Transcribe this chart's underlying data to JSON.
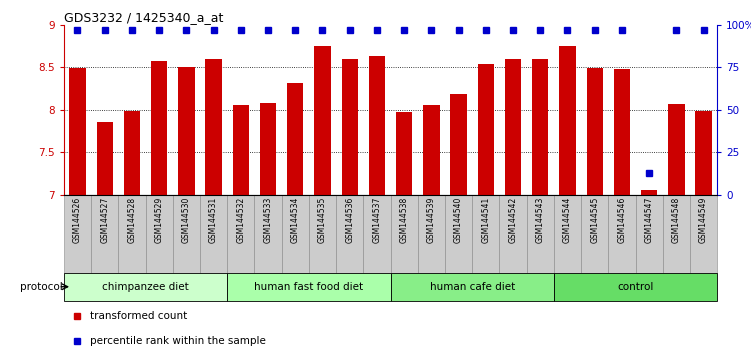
{
  "title": "GDS3232 / 1425340_a_at",
  "samples": [
    "GSM144526",
    "GSM144527",
    "GSM144528",
    "GSM144529",
    "GSM144530",
    "GSM144531",
    "GSM144532",
    "GSM144533",
    "GSM144534",
    "GSM144535",
    "GSM144536",
    "GSM144537",
    "GSM144538",
    "GSM144539",
    "GSM144540",
    "GSM144541",
    "GSM144542",
    "GSM144543",
    "GSM144544",
    "GSM144545",
    "GSM144546",
    "GSM144547",
    "GSM144548",
    "GSM144549"
  ],
  "bar_values": [
    8.49,
    7.85,
    7.98,
    8.57,
    8.5,
    8.6,
    8.05,
    8.08,
    8.32,
    8.75,
    8.6,
    8.63,
    7.97,
    8.06,
    8.19,
    8.54,
    8.6,
    8.6,
    8.75,
    8.49,
    8.48,
    7.05,
    8.07,
    7.98
  ],
  "percentile_ranks": [
    97,
    97,
    97,
    97,
    97,
    97,
    97,
    97,
    97,
    97,
    97,
    97,
    97,
    97,
    97,
    97,
    97,
    97,
    97,
    97,
    97,
    13,
    97,
    97
  ],
  "bar_color": "#cc0000",
  "percentile_color": "#0000cc",
  "ylim_left": [
    7.0,
    9.0
  ],
  "ylim_right": [
    0,
    100
  ],
  "yticks_left": [
    7.0,
    7.5,
    8.0,
    8.5,
    9.0
  ],
  "ytick_labels_left": [
    "7",
    "7.5",
    "8",
    "8.5",
    "9"
  ],
  "yticks_right": [
    0,
    25,
    50,
    75,
    100
  ],
  "ytick_labels_right": [
    "0",
    "25",
    "50",
    "75",
    "100%"
  ],
  "groups": [
    {
      "label": "chimpanzee diet",
      "start": 0,
      "end": 5,
      "color": "#ccffcc"
    },
    {
      "label": "human fast food diet",
      "start": 6,
      "end": 11,
      "color": "#aaffaa"
    },
    {
      "label": "human cafe diet",
      "start": 12,
      "end": 17,
      "color": "#88ee88"
    },
    {
      "label": "control",
      "start": 18,
      "end": 23,
      "color": "#66dd66"
    }
  ],
  "protocol_label": "protocol",
  "legend_items": [
    {
      "label": "transformed count",
      "color": "#cc0000"
    },
    {
      "label": "percentile rank within the sample",
      "color": "#0000cc"
    }
  ],
  "label_bg_color": "#cccccc",
  "label_border_color": "#888888"
}
